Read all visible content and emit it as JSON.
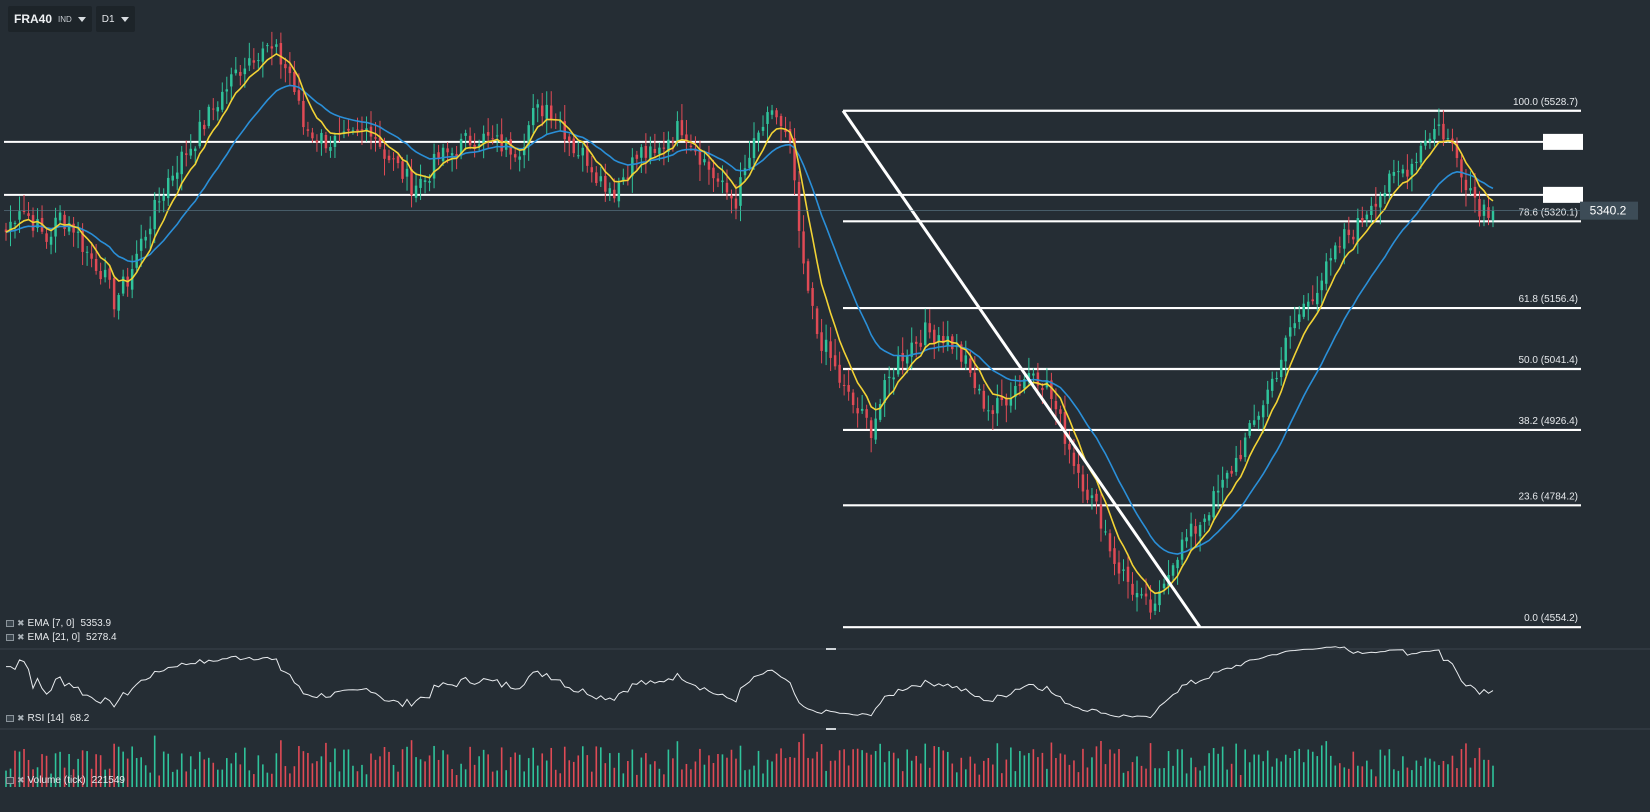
{
  "toolbar": {
    "symbol": "FRA40",
    "symbol_type": "IND",
    "timeframe": "D1"
  },
  "indicators": {
    "ema_fast": {
      "label": "EMA",
      "params": "[7, 0]",
      "value": "5353.9",
      "color": "#f2d335"
    },
    "ema_slow": {
      "label": "EMA",
      "params": "[21, 0]",
      "value": "5278.4",
      "color": "#2a8fd8"
    },
    "rsi": {
      "label": "RSI",
      "params": "[14]",
      "value": "68.2"
    },
    "volume": {
      "label": "Volume",
      "params": "(tick)",
      "value": "221549"
    }
  },
  "chart_data": {
    "type": "candlestick",
    "symbol": "FRA40",
    "timeframe": "D1",
    "ylim": [
      4530,
      5700
    ],
    "current_price": 5340.2,
    "current_price_label": "5340.2",
    "colors": {
      "up": "#2fc39b",
      "down": "#e04a55",
      "background": "#252d34",
      "lines": "#ffffff"
    },
    "fibonacci": {
      "high": 5528.7,
      "low": 4554.2,
      "levels": [
        {
          "ratio": 100.0,
          "price": 5528.7,
          "label": "100.0 (5528.7)"
        },
        {
          "ratio": 78.6,
          "price": 5320.1,
          "label": "78.6 (5320.1)"
        },
        {
          "ratio": 61.8,
          "price": 5156.4,
          "label": "61.8 (5156.4)"
        },
        {
          "ratio": 50.0,
          "price": 5041.4,
          "label": "50.0 (5041.4)"
        },
        {
          "ratio": 38.2,
          "price": 4926.4,
          "label": "38.2 (4926.4)"
        },
        {
          "ratio": 23.6,
          "price": 4784.2,
          "label": "23.6 (4784.2)"
        },
        {
          "ratio": 0.0,
          "price": 4554.2,
          "label": "0.0 (4554.2)"
        }
      ]
    },
    "horizontal_lines": [
      5470,
      5370
    ],
    "price_path": [
      5300,
      5350,
      5320,
      5285,
      5330,
      5310,
      5260,
      5230,
      5170,
      5210,
      5280,
      5340,
      5400,
      5440,
      5475,
      5520,
      5560,
      5600,
      5630,
      5650,
      5635,
      5600,
      5500,
      5480,
      5470,
      5470,
      5480,
      5500,
      5450,
      5420,
      5390,
      5400,
      5440,
      5450,
      5470,
      5480,
      5470,
      5460,
      5460,
      5520,
      5540,
      5510,
      5460,
      5440,
      5400,
      5380,
      5420,
      5450,
      5440,
      5480,
      5500,
      5460,
      5420,
      5380,
      5360,
      5440,
      5500,
      5520,
      5460,
      5220,
      5110,
      5060,
      5000,
      4960,
      4930,
      5000,
      5060,
      5090,
      5110,
      5110,
      5090,
      5050,
      4990,
      4960,
      4990,
      5020,
      5040,
      5010,
      4940,
      4870,
      4810,
      4760,
      4680,
      4640,
      4600,
      4580,
      4670,
      4710,
      4740,
      4780,
      4820,
      4870,
      4920,
      4980,
      5040,
      5110,
      5160,
      5200,
      5240,
      5290,
      5310,
      5360,
      5380,
      5410,
      5430,
      5480,
      5500,
      5460,
      5400,
      5350,
      5340
    ],
    "ema_fast_last": 5353.9,
    "ema_slow_last": 5278.4,
    "rsi_last": 68.2,
    "volume_last": 221549
  }
}
